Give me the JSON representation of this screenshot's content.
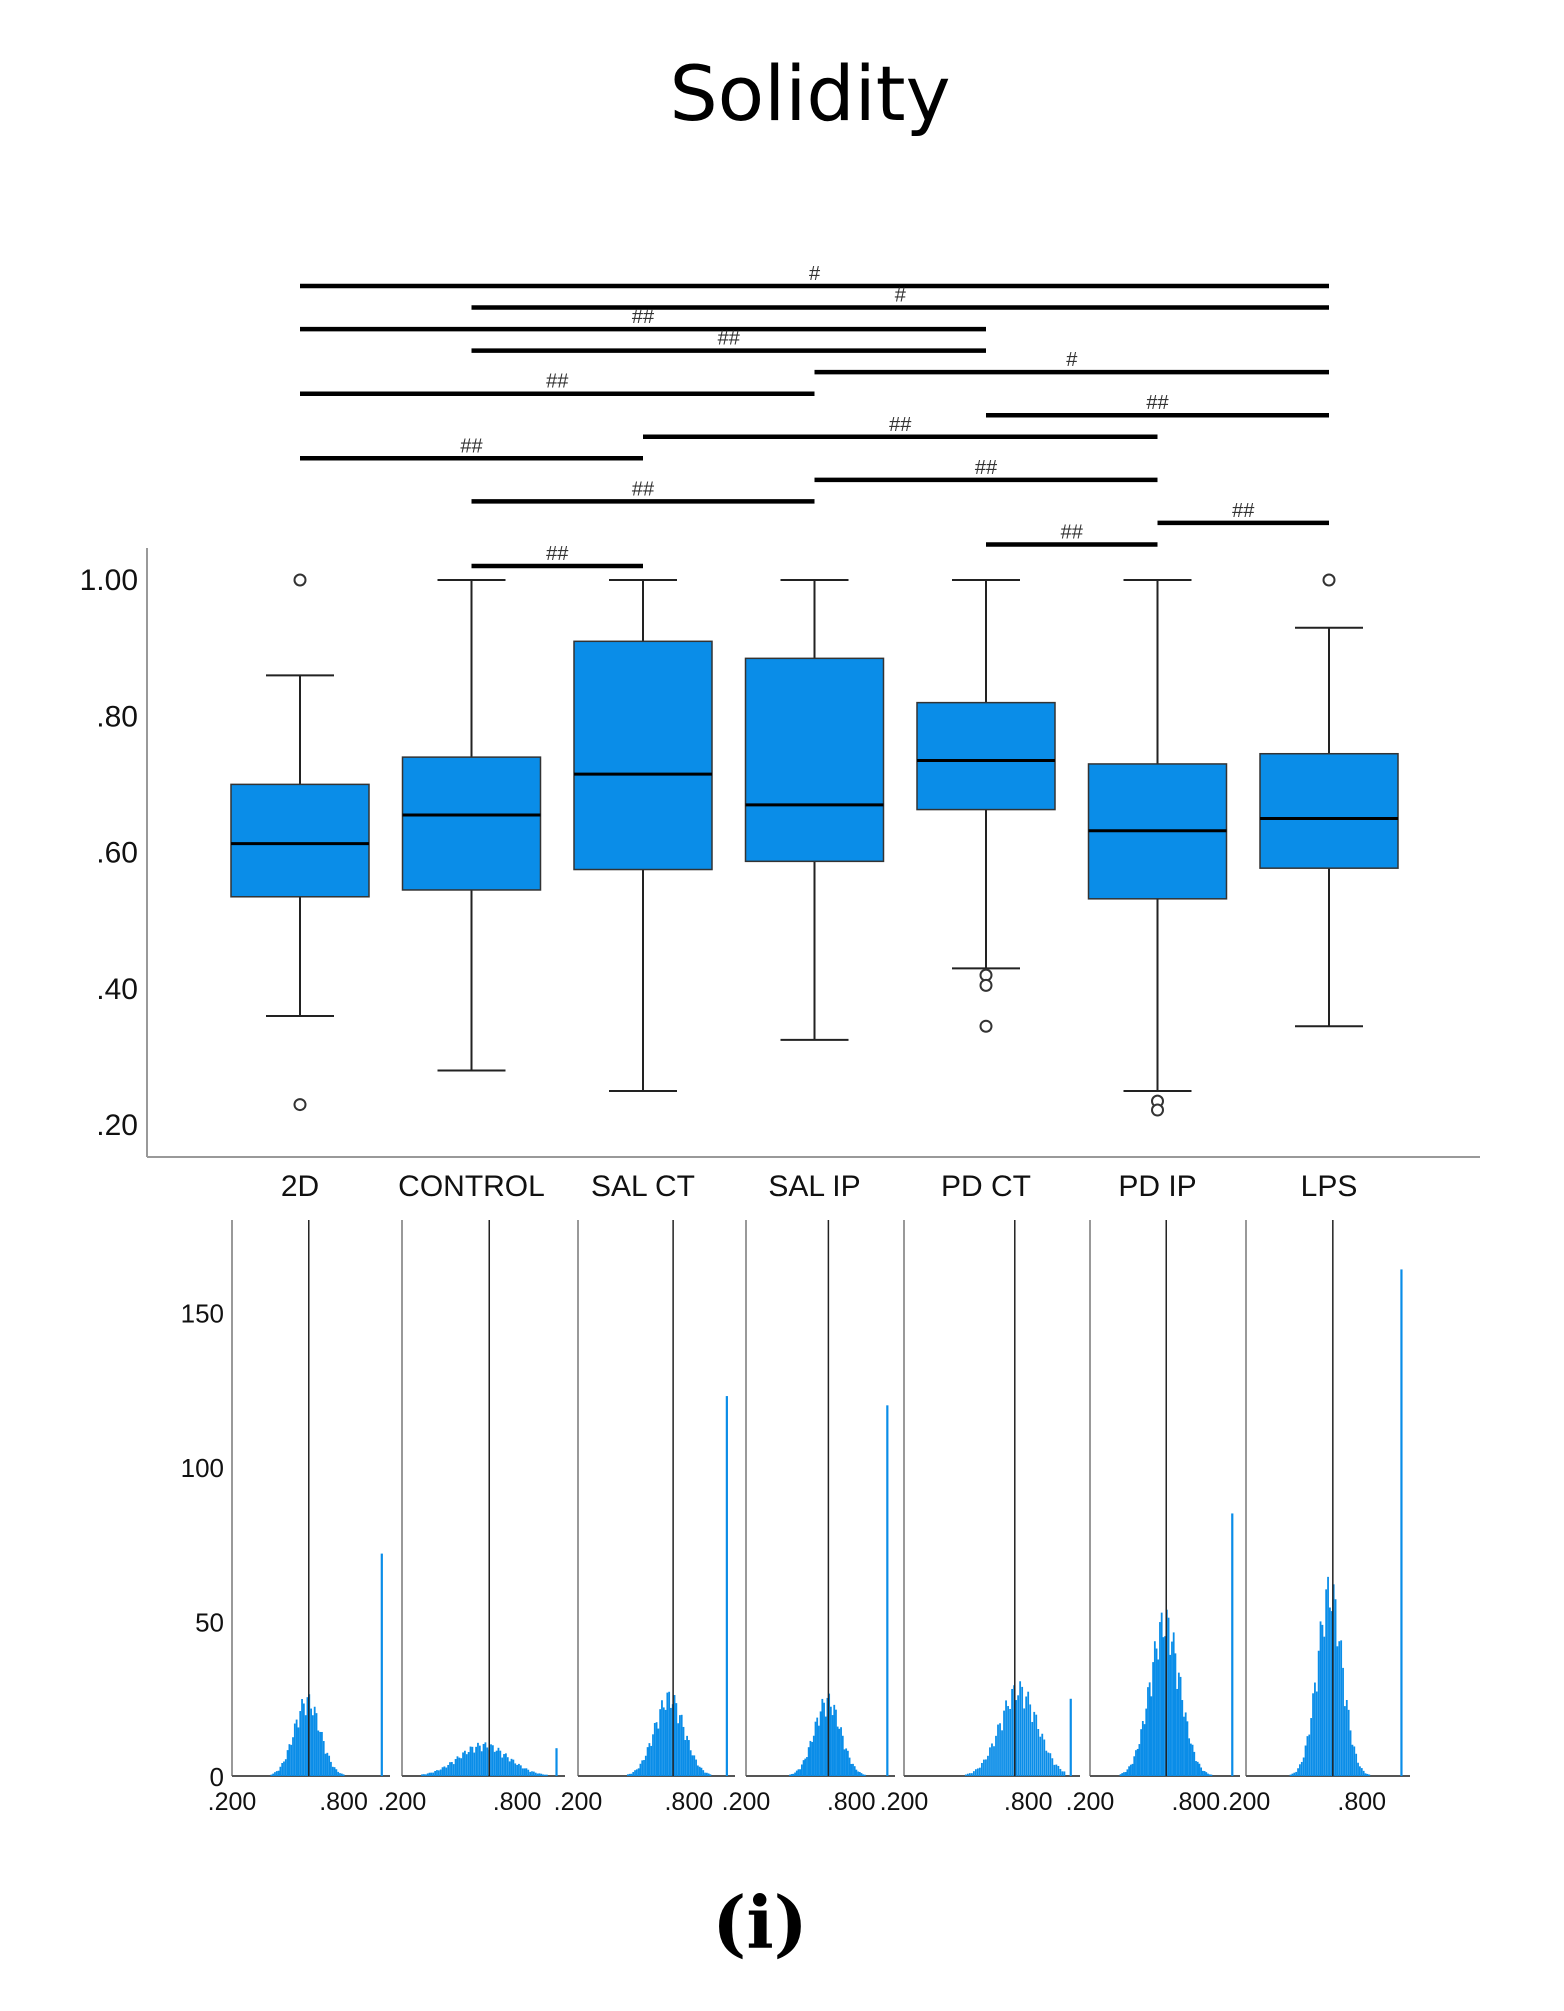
{
  "chart_data": [
    {
      "type": "box",
      "title": "Solidity",
      "ylim": [
        0.2,
        1.0
      ],
      "y_ticks": [
        {
          "value": 1.0,
          "label": "1.00"
        },
        {
          "value": 0.8,
          "label": ".80"
        },
        {
          "value": 0.6,
          "label": ".60"
        },
        {
          "value": 0.4,
          "label": ".40"
        },
        {
          "value": 0.2,
          "label": ".20"
        }
      ],
      "categories": [
        "2D",
        "CONTROL",
        "SAL CT",
        "SAL IP",
        "PD CT",
        "PD IP",
        "LPS"
      ],
      "boxes": [
        {
          "min": 0.36,
          "q1": 0.535,
          "median": 0.613,
          "q3": 0.7,
          "max": 0.86,
          "outliers": [
            1.0,
            0.23
          ]
        },
        {
          "min": 0.28,
          "q1": 0.545,
          "median": 0.655,
          "q3": 0.74,
          "max": 1.0,
          "outliers": []
        },
        {
          "min": 0.25,
          "q1": 0.575,
          "median": 0.715,
          "q3": 0.91,
          "max": 1.0,
          "outliers": []
        },
        {
          "min": 0.325,
          "q1": 0.587,
          "median": 0.67,
          "q3": 0.885,
          "max": 1.0,
          "outliers": []
        },
        {
          "min": 0.43,
          "q1": 0.663,
          "median": 0.735,
          "q3": 0.82,
          "max": 1.0,
          "outliers": [
            0.42,
            0.405,
            0.345
          ]
        },
        {
          "min": 0.25,
          "q1": 0.532,
          "median": 0.632,
          "q3": 0.73,
          "max": 1.0,
          "outliers": [
            0.235,
            0.222
          ]
        },
        {
          "min": 0.345,
          "q1": 0.577,
          "median": 0.65,
          "q3": 0.745,
          "max": 0.93,
          "outliers": [
            1.0
          ]
        }
      ],
      "significance": [
        {
          "from": 0,
          "to": 6,
          "label": "#"
        },
        {
          "from": 1,
          "to": 6,
          "label": "#"
        },
        {
          "from": 0,
          "to": 4,
          "label": "##"
        },
        {
          "from": 1,
          "to": 4,
          "label": "##"
        },
        {
          "from": 3,
          "to": 6,
          "label": "#"
        },
        {
          "from": 0,
          "to": 3,
          "label": "##"
        },
        {
          "from": 4,
          "to": 6,
          "label": "##"
        },
        {
          "from": 2,
          "to": 5,
          "label": "##"
        },
        {
          "from": 0,
          "to": 2,
          "label": "##"
        },
        {
          "from": 3,
          "to": 5,
          "label": "##"
        },
        {
          "from": 1,
          "to": 3,
          "label": "##"
        },
        {
          "from": 5,
          "to": 6,
          "label": "##"
        },
        {
          "from": 4,
          "to": 5,
          "label": "##"
        },
        {
          "from": 1,
          "to": 2,
          "label": "##"
        }
      ]
    },
    {
      "type": "bar",
      "subtype": "histogram",
      "y_ticks": [
        0,
        50,
        100,
        150
      ],
      "ylim": [
        0,
        180
      ],
      "x_tick_labels": [
        ".200",
        ".800"
      ],
      "x_tick_values": [
        0.2,
        0.8
      ],
      "series": [
        {
          "name": "2D",
          "median": 0.613,
          "center": 0.6,
          "spread": 0.07,
          "peak": 27,
          "ones": 72,
          "tail": 1
        },
        {
          "name": "CONTROL",
          "median": 0.655,
          "center": 0.62,
          "spread": 0.13,
          "peak": 11,
          "ones": 9,
          "tail": 3
        },
        {
          "name": "SAL CT",
          "median": 0.715,
          "center": 0.69,
          "spread": 0.08,
          "peak": 28,
          "ones": 123,
          "tail": 2
        },
        {
          "name": "SAL IP",
          "median": 0.67,
          "center": 0.66,
          "spread": 0.075,
          "peak": 27,
          "ones": 120,
          "tail": 2
        },
        {
          "name": "PD CT",
          "median": 0.735,
          "center": 0.75,
          "spread": 0.09,
          "peak": 31,
          "ones": 25,
          "tail": 3
        },
        {
          "name": "PD IP",
          "median": 0.632,
          "center": 0.62,
          "spread": 0.085,
          "peak": 55,
          "ones": 85,
          "tail": 2
        },
        {
          "name": "LPS",
          "median": 0.65,
          "center": 0.63,
          "spread": 0.065,
          "peak": 66,
          "ones": 164,
          "tail": 1
        }
      ]
    }
  ],
  "panel_label": "(i)"
}
